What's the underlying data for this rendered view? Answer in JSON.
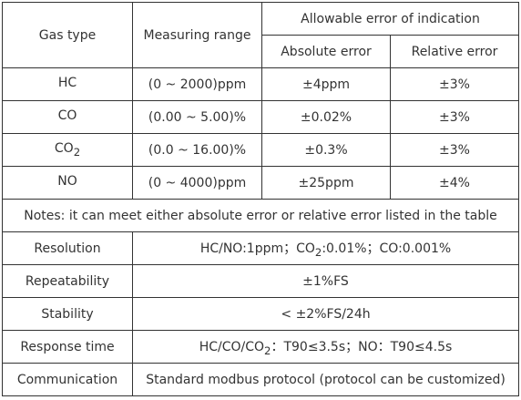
{
  "header": {
    "gas_type": "Gas type",
    "measuring_range": "Measuring range",
    "allowable_error": "Allowable error of indication",
    "absolute_error": "Absolute error",
    "relative_error": "Relative error"
  },
  "gases": [
    {
      "name": "HC",
      "sub": "",
      "range": "(0 ~ 2000)ppm",
      "absolute": "±4ppm",
      "relative": "±3%"
    },
    {
      "name": "CO",
      "sub": "",
      "range": "(0.00 ~ 5.00)%",
      "absolute": "±0.02%",
      "relative": "±3%"
    },
    {
      "name": "CO",
      "sub": "2",
      "range": "(0.0 ~ 16.00)%",
      "absolute": "±0.3%",
      "relative": "±3%"
    },
    {
      "name": "NO",
      "sub": "",
      "range": "(0 ~ 4000)ppm",
      "absolute": "±25ppm",
      "relative": "±4%"
    }
  ],
  "notes": "Notes: it can meet either absolute error or relative error listed in the table",
  "resolution": {
    "label": "Resolution",
    "p1": "HC/NO:1ppm；CO",
    "sub": "2",
    "p2": ":0.01%；CO:0.001%"
  },
  "repeatability": {
    "label": "Repeatability",
    "value": "±1%FS"
  },
  "stability": {
    "label": "Stability",
    "value": "< ±2%FS/24h"
  },
  "response_time": {
    "label": "Response time",
    "p1": "HC/CO/CO",
    "sub": "2",
    "p2": "：T90≤3.5s；NO：T90≤4.5s"
  },
  "communication": {
    "label": "Communication",
    "value": "Standard modbus protocol (protocol can be customized)"
  }
}
